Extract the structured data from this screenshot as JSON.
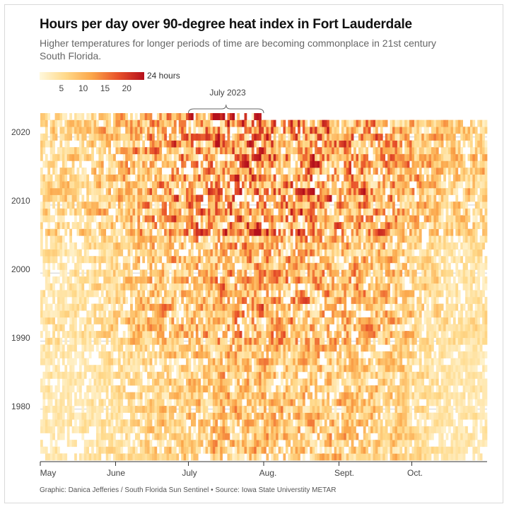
{
  "chart_data": {
    "type": "heatmap",
    "title": "Hours per day over 90-degree heat index in Fort Lauderdale",
    "subtitle": "Higher temperatures for longer periods of time are becoming commonplace in 21st century South Florida.",
    "x_range": [
      "May 1",
      "Oct. 31"
    ],
    "x_tick_labels": [
      "May",
      "June",
      "July",
      "Aug.",
      "Sept.",
      "Oct."
    ],
    "y_range": [
      1973,
      2023
    ],
    "y_tick_labels": [
      "2020",
      "2010",
      "2000",
      "1990",
      "1980"
    ],
    "y_ticks": [
      2020,
      2010,
      2000,
      1990,
      1980
    ],
    "value_label": "24 hours",
    "color_scale": {
      "min": 0,
      "max": 24,
      "ticks": [
        5,
        10,
        15,
        20
      ],
      "tick_labels": [
        "5",
        "10",
        "15",
        "20"
      ],
      "colors": [
        "#fff8dc",
        "#ffd98a",
        "#fba64a",
        "#e8522a",
        "#b5101c"
      ]
    },
    "annotation": {
      "label": "July 2023",
      "year": 2023,
      "start": "July 1",
      "end": "Aug. 1"
    },
    "grid": true,
    "approx_mean_hours_by_month_and_era": {
      "months": [
        "May",
        "June",
        "July",
        "Aug.",
        "Sept.",
        "Oct."
      ],
      "1973-1989": [
        3,
        6,
        8,
        8,
        7,
        3
      ],
      "1990-2005": [
        4,
        8,
        10,
        10,
        9,
        4
      ],
      "2006-2023": [
        6,
        10,
        13,
        13,
        11,
        7
      ]
    },
    "source": "Graphic: Danica Jefferies / South Florida Sun Sentinel • Source: Iowa State Universtity METAR"
  }
}
